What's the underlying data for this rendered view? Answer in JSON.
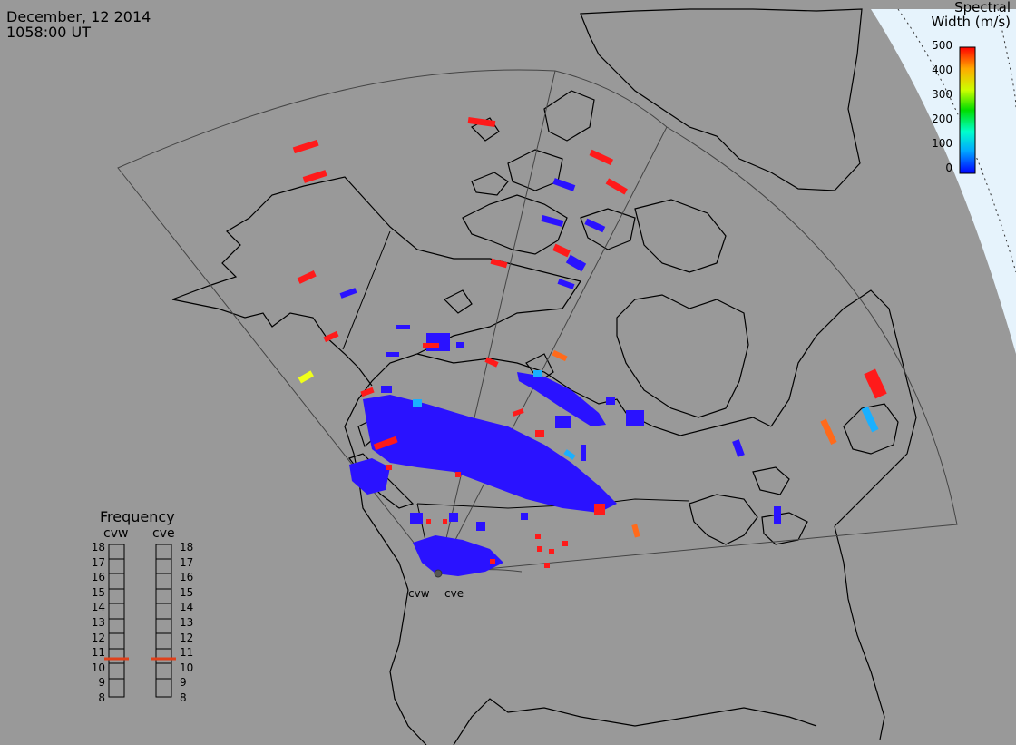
{
  "header": {
    "date": "December, 12 2014",
    "time": "1058:00 UT"
  },
  "colorbar": {
    "title_line1": "Spectral",
    "title_line2": "Width (m/s)",
    "ticks": [
      "500",
      "400",
      "300",
      "200",
      "100",
      "0"
    ],
    "colors": [
      "#0000ff",
      "#00aaff",
      "#00ffcc",
      "#00dd00",
      "#ffff00",
      "#ffaa00",
      "#ff0000"
    ]
  },
  "frequency": {
    "title": "Frequency",
    "radars": [
      "cvw",
      "cve"
    ],
    "ticks": [
      "18",
      "17",
      "16",
      "15",
      "14",
      "13",
      "12",
      "11",
      "10",
      "9",
      "8"
    ],
    "cvw_value_mhz": 10.5,
    "cve_value_mhz": 10.5,
    "marker_color": "#e0401a"
  },
  "radar_sites": [
    "cvw",
    "cve"
  ],
  "scatter_color": "#2a12ff",
  "map": {
    "background": "#999999",
    "space_color": "#e6f3fc"
  }
}
